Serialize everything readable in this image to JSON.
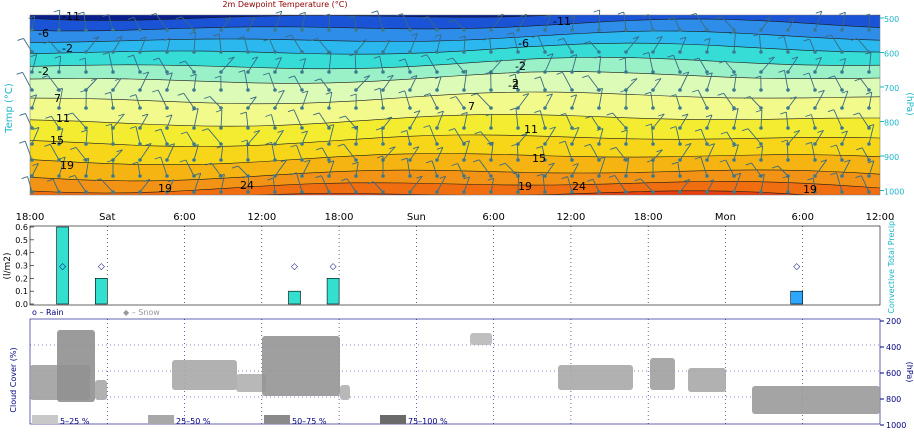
{
  "colors": {
    "teal": "#1bb5c7",
    "navy": "#000080",
    "rain_bar": "#33e0d0",
    "conv_bar": "#2da6ff",
    "title_red": "#8b0000",
    "grid_dot": "#3333ff",
    "bands": [
      "#0a1f8c",
      "#1a53d6",
      "#2e8de8",
      "#2ab8ee",
      "#36ddd7",
      "#9af0c7",
      "#dcfbb7",
      "#f2fa8c",
      "#f3ec31",
      "#f7d61a",
      "#f5b411",
      "#f39316",
      "#f06e10",
      "#e7400f"
    ]
  },
  "chart_data": [
    {
      "type": "heatmap",
      "title": "2m Dewpoint Temperature (°C)",
      "ylabel_left": "Temp (°C)",
      "ylabel_right": "(hPa)",
      "y_right_ticks": [
        "500",
        "600",
        "700",
        "800",
        "900",
        "1000"
      ],
      "contour_labels": [
        "-11",
        "-11",
        "-6",
        "-6",
        "-2",
        "-2",
        "-2",
        "-2",
        "2",
        "7",
        "7",
        "11",
        "11",
        "15",
        "15",
        "19",
        "19",
        "19",
        "24",
        "24",
        "19"
      ],
      "legend_position": "top"
    },
    {
      "type": "bar",
      "ylabel_left": "(l/m2)",
      "ylabel_right": "Convective Total Precip.",
      "ylim": [
        0,
        0.6
      ],
      "y_ticks": [
        "0.0",
        "0.1",
        "0.2",
        "0.3",
        "0.4",
        "0.5",
        "0.6"
      ],
      "x_ticks": [
        "18:00",
        "Sat",
        "6:00",
        "12:00",
        "18:00",
        "Sun",
        "6:00",
        "12:00",
        "18:00",
        "Mon",
        "6:00",
        "12:00"
      ],
      "series": [
        {
          "name": "Rain",
          "values": [
            {
              "x": "Fri 21:00",
              "value": 0.6
            },
            {
              "x": "Sat 00:00",
              "value": 0.2
            },
            {
              "x": "Sat 15:00",
              "value": 0.1
            },
            {
              "x": "Sat 18:00",
              "value": 0.2
            }
          ]
        },
        {
          "name": "Convective",
          "values": [
            {
              "x": "Mon 06:00",
              "value": 0.1
            }
          ]
        },
        {
          "name": "Snow",
          "values": []
        }
      ],
      "legend": [
        "o – Rain",
        "◆ – Snow"
      ]
    },
    {
      "type": "heatmap",
      "ylabel_left": "Cloud Cover (%)",
      "ylabel_right": "(hPa)",
      "y_right_ticks": [
        "200",
        "400",
        "600",
        "800",
        "1000"
      ],
      "legend": [
        "5–25 %",
        "25–50 %",
        "50–75 %",
        "75–100 %"
      ],
      "legend_colors": [
        "#c8c8c8",
        "#a8a8a8",
        "#8a8a8a",
        "#6a6a6a"
      ]
    }
  ]
}
